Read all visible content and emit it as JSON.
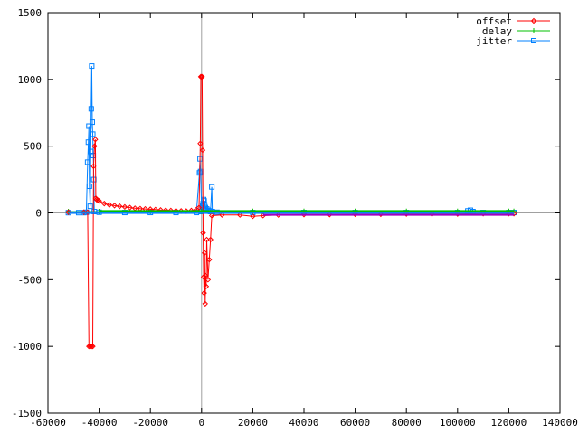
{
  "chart_data": {
    "type": "line",
    "title": "",
    "xlabel": "",
    "ylabel": "",
    "xlim": [
      -60000,
      140000
    ],
    "ylim": [
      -1500,
      1500
    ],
    "x_ticks": [
      -60000,
      -40000,
      -20000,
      0,
      20000,
      40000,
      60000,
      80000,
      100000,
      120000,
      140000
    ],
    "y_ticks": [
      -1500,
      -1000,
      -500,
      0,
      500,
      1000,
      1500
    ],
    "grid": false,
    "zero_axes": true,
    "legend_position": "top-right",
    "series": [
      {
        "name": "offset",
        "color": "#ff0000",
        "marker": "diamond",
        "points": [
          [
            -52000,
            5
          ],
          [
            -46000,
            5
          ],
          [
            -44500,
            5
          ],
          [
            -44000,
            -1000
          ],
          [
            -43500,
            -1000
          ],
          [
            -43000,
            -1000
          ],
          [
            -42500,
            -1000
          ],
          [
            -42200,
            350
          ],
          [
            -41800,
            500
          ],
          [
            -41500,
            550
          ],
          [
            -41300,
            110
          ],
          [
            -41000,
            100
          ],
          [
            -40500,
            95
          ],
          [
            -40000,
            90
          ],
          [
            -38000,
            70
          ],
          [
            -36000,
            60
          ],
          [
            -34000,
            55
          ],
          [
            -32000,
            50
          ],
          [
            -30000,
            45
          ],
          [
            -28000,
            40
          ],
          [
            -26000,
            35
          ],
          [
            -24000,
            32
          ],
          [
            -22000,
            30
          ],
          [
            -20000,
            28
          ],
          [
            -18000,
            25
          ],
          [
            -16000,
            22
          ],
          [
            -14000,
            20
          ],
          [
            -12000,
            18
          ],
          [
            -10000,
            16
          ],
          [
            -8000,
            15
          ],
          [
            -6000,
            14
          ],
          [
            -4000,
            18
          ],
          [
            -2000,
            25
          ],
          [
            -1000,
            40
          ],
          [
            -500,
            520
          ],
          [
            -300,
            1020
          ],
          [
            0,
            1020
          ],
          [
            200,
            1020
          ],
          [
            400,
            470
          ],
          [
            600,
            -150
          ],
          [
            800,
            -480
          ],
          [
            1000,
            -600
          ],
          [
            1200,
            -300
          ],
          [
            1400,
            -680
          ],
          [
            1600,
            -470
          ],
          [
            1800,
            -550
          ],
          [
            2000,
            -200
          ],
          [
            2500,
            -500
          ],
          [
            3000,
            -350
          ],
          [
            3500,
            -200
          ],
          [
            4000,
            -20
          ],
          [
            8000,
            -15
          ],
          [
            15000,
            -15
          ],
          [
            20000,
            -25
          ],
          [
            24000,
            -20
          ],
          [
            30000,
            -15
          ],
          [
            40000,
            -12
          ],
          [
            50000,
            -12
          ],
          [
            60000,
            -10
          ],
          [
            70000,
            -10
          ],
          [
            80000,
            -8
          ],
          [
            90000,
            -8
          ],
          [
            100000,
            -8
          ],
          [
            110000,
            -5
          ],
          [
            120000,
            -5
          ],
          [
            122000,
            -5
          ]
        ]
      },
      {
        "name": "delay",
        "color": "#00c000",
        "marker": "plus",
        "points": [
          [
            -52000,
            10
          ],
          [
            -40000,
            10
          ],
          [
            -20000,
            10
          ],
          [
            0,
            10
          ],
          [
            20000,
            12
          ],
          [
            40000,
            12
          ],
          [
            60000,
            12
          ],
          [
            80000,
            12
          ],
          [
            100000,
            12
          ],
          [
            120000,
            12
          ],
          [
            122000,
            12
          ]
        ]
      },
      {
        "name": "jitter",
        "color": "#0080ff",
        "marker": "square",
        "points": [
          [
            -52000,
            2
          ],
          [
            -48000,
            2
          ],
          [
            -46000,
            2
          ],
          [
            -45000,
            5
          ],
          [
            -44500,
            380
          ],
          [
            -44200,
            530
          ],
          [
            -44000,
            650
          ],
          [
            -43800,
            200
          ],
          [
            -43500,
            50
          ],
          [
            -43300,
            460
          ],
          [
            -43100,
            780
          ],
          [
            -42900,
            1100
          ],
          [
            -42700,
            680
          ],
          [
            -42500,
            590
          ],
          [
            -42300,
            430
          ],
          [
            -42100,
            250
          ],
          [
            -41900,
            10
          ],
          [
            -40000,
            5
          ],
          [
            -30000,
            3
          ],
          [
            -20000,
            3
          ],
          [
            -10000,
            3
          ],
          [
            -2000,
            3
          ],
          [
            -800,
            300
          ],
          [
            -600,
            405
          ],
          [
            -400,
            310
          ],
          [
            0,
            10
          ],
          [
            200,
            20
          ],
          [
            400,
            50
          ],
          [
            600,
            70
          ],
          [
            800,
            100
          ],
          [
            1000,
            90
          ],
          [
            1200,
            60
          ],
          [
            1500,
            40
          ],
          [
            2000,
            30
          ],
          [
            2500,
            20
          ],
          [
            3000,
            15
          ],
          [
            3500,
            10
          ],
          [
            4000,
            195
          ],
          [
            4200,
            10
          ],
          [
            6000,
            5
          ],
          [
            20000,
            3
          ],
          [
            40000,
            3
          ],
          [
            60000,
            3
          ],
          [
            80000,
            3
          ],
          [
            100000,
            3
          ],
          [
            104000,
            15
          ],
          [
            105000,
            20
          ],
          [
            106000,
            10
          ],
          [
            110000,
            3
          ],
          [
            120000,
            3
          ],
          [
            122000,
            3
          ]
        ]
      }
    ]
  }
}
